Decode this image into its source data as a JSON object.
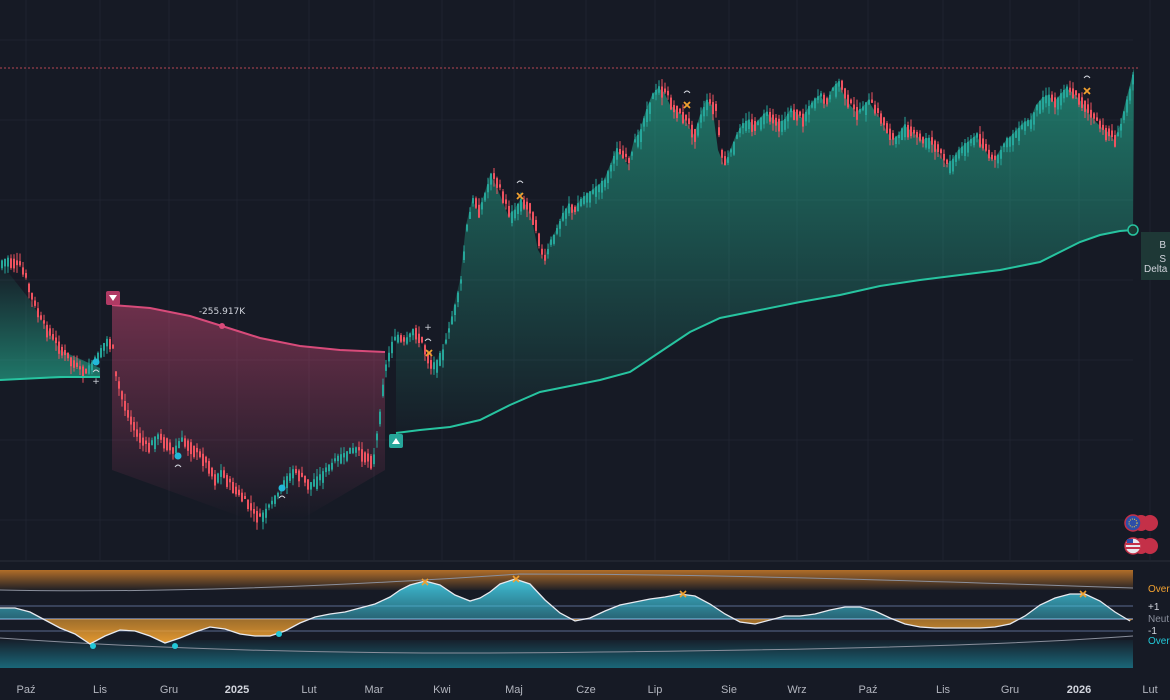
{
  "chart_data": [
    {
      "type": "candlestick",
      "panel": "price",
      "x_labels": [
        "Paź",
        "Lis",
        "Gru",
        "2025",
        "Lut",
        "Mar",
        "Kwi",
        "Maj",
        "Cze",
        "Lip",
        "Sie",
        "Wrz",
        "Paź",
        "Lis",
        "Gru",
        "2026",
        "Lut"
      ],
      "year_labels": [
        "2025",
        "2026"
      ],
      "close_path": [
        [
          0,
          262
        ],
        [
          8,
          258
        ],
        [
          16,
          262
        ],
        [
          22,
          275
        ],
        [
          30,
          300
        ],
        [
          38,
          318
        ],
        [
          46,
          330
        ],
        [
          54,
          342
        ],
        [
          62,
          352
        ],
        [
          70,
          362
        ],
        [
          78,
          368
        ],
        [
          86,
          370
        ],
        [
          94,
          358
        ],
        [
          102,
          345
        ],
        [
          108,
          338
        ],
        [
          112,
          372
        ],
        [
          118,
          392
        ],
        [
          124,
          412
        ],
        [
          132,
          428
        ],
        [
          140,
          440
        ],
        [
          148,
          445
        ],
        [
          156,
          435
        ],
        [
          164,
          440
        ],
        [
          172,
          452
        ],
        [
          180,
          438
        ],
        [
          188,
          445
        ],
        [
          196,
          452
        ],
        [
          204,
          460
        ],
        [
          212,
          478
        ],
        [
          220,
          472
        ],
        [
          228,
          482
        ],
        [
          236,
          492
        ],
        [
          244,
          500
        ],
        [
          252,
          512
        ],
        [
          260,
          516
        ],
        [
          268,
          505
        ],
        [
          276,
          495
        ],
        [
          284,
          480
        ],
        [
          292,
          470
        ],
        [
          300,
          475
        ],
        [
          308,
          485
        ],
        [
          316,
          478
        ],
        [
          324,
          470
        ],
        [
          332,
          462
        ],
        [
          340,
          455
        ],
        [
          348,
          450
        ],
        [
          356,
          448
        ],
        [
          364,
          455
        ],
        [
          372,
          462
        ],
        [
          378,
          420
        ],
        [
          384,
          370
        ],
        [
          390,
          345
        ],
        [
          396,
          335
        ],
        [
          404,
          340
        ],
        [
          412,
          330
        ],
        [
          418,
          338
        ],
        [
          424,
          355
        ],
        [
          430,
          368
        ],
        [
          436,
          360
        ],
        [
          442,
          350
        ],
        [
          448,
          330
        ],
        [
          454,
          305
        ],
        [
          460,
          280
        ],
        [
          466,
          225
        ],
        [
          472,
          200
        ],
        [
          478,
          210
        ],
        [
          484,
          195
        ],
        [
          490,
          175
        ],
        [
          496,
          185
        ],
        [
          502,
          200
        ],
        [
          508,
          215
        ],
        [
          514,
          210
        ],
        [
          520,
          200
        ],
        [
          526,
          205
        ],
        [
          532,
          220
        ],
        [
          538,
          250
        ],
        [
          544,
          260
        ],
        [
          550,
          240
        ],
        [
          556,
          230
        ],
        [
          562,
          215
        ],
        [
          568,
          205
        ],
        [
          574,
          210
        ],
        [
          580,
          200
        ],
        [
          586,
          195
        ],
        [
          592,
          190
        ],
        [
          598,
          185
        ],
        [
          604,
          180
        ],
        [
          610,
          165
        ],
        [
          616,
          150
        ],
        [
          622,
          155
        ],
        [
          628,
          165
        ],
        [
          634,
          140
        ],
        [
          640,
          130
        ],
        [
          646,
          110
        ],
        [
          652,
          95
        ],
        [
          658,
          88
        ],
        [
          664,
          92
        ],
        [
          670,
          105
        ],
        [
          676,
          110
        ],
        [
          682,
          115
        ],
        [
          688,
          125
        ],
        [
          694,
          135
        ],
        [
          700,
          115
        ],
        [
          706,
          100
        ],
        [
          712,
          105
        ],
        [
          718,
          150
        ],
        [
          724,
          165
        ],
        [
          730,
          150
        ],
        [
          736,
          135
        ],
        [
          742,
          125
        ],
        [
          748,
          120
        ],
        [
          754,
          125
        ],
        [
          760,
          118
        ],
        [
          766,
          112
        ],
        [
          772,
          118
        ],
        [
          778,
          122
        ],
        [
          784,
          120
        ],
        [
          790,
          110
        ],
        [
          796,
          112
        ],
        [
          802,
          118
        ],
        [
          808,
          108
        ],
        [
          814,
          100
        ],
        [
          820,
          95
        ],
        [
          826,
          105
        ],
        [
          832,
          88
        ],
        [
          838,
          82
        ],
        [
          844,
          95
        ],
        [
          850,
          105
        ],
        [
          856,
          112
        ],
        [
          862,
          108
        ],
        [
          868,
          100
        ],
        [
          874,
          110
        ],
        [
          880,
          118
        ],
        [
          886,
          130
        ],
        [
          892,
          140
        ],
        [
          898,
          135
        ],
        [
          904,
          125
        ],
        [
          910,
          130
        ],
        [
          916,
          135
        ],
        [
          922,
          140
        ],
        [
          928,
          138
        ],
        [
          934,
          145
        ],
        [
          940,
          155
        ],
        [
          946,
          165
        ],
        [
          952,
          160
        ],
        [
          958,
          150
        ],
        [
          964,
          145
        ],
        [
          970,
          140
        ],
        [
          976,
          135
        ],
        [
          982,
          145
        ],
        [
          988,
          155
        ],
        [
          994,
          160
        ],
        [
          1000,
          150
        ],
        [
          1006,
          140
        ],
        [
          1012,
          135
        ],
        [
          1018,
          128
        ],
        [
          1024,
          122
        ],
        [
          1030,
          120
        ],
        [
          1036,
          105
        ],
        [
          1042,
          98
        ],
        [
          1048,
          95
        ],
        [
          1054,
          102
        ],
        [
          1060,
          95
        ],
        [
          1066,
          88
        ],
        [
          1072,
          92
        ],
        [
          1078,
          98
        ],
        [
          1084,
          105
        ],
        [
          1090,
          115
        ],
        [
          1096,
          122
        ],
        [
          1102,
          128
        ],
        [
          1108,
          132
        ],
        [
          1114,
          140
        ],
        [
          1120,
          125
        ],
        [
          1126,
          100
        ],
        [
          1130,
          85
        ],
        [
          1134,
          68
        ]
      ]
    },
    {
      "type": "line",
      "panel": "price",
      "series": [
        {
          "trend": "bullish",
          "color": "#27c4a0",
          "points": [
            [
              0,
              380
            ],
            [
              20,
              379
            ],
            [
              40,
              378
            ],
            [
              60,
              377
            ],
            [
              80,
              377
            ],
            [
              100,
              377
            ]
          ]
        },
        {
          "trend": "bearish",
          "color": "#d84b7a",
          "points": [
            [
              112,
              305
            ],
            [
              150,
              308
            ],
            [
              190,
              316
            ],
            [
              222,
              326
            ],
            [
              260,
              338
            ],
            [
              300,
              346
            ],
            [
              340,
              350
            ],
            [
              385,
              352
            ]
          ]
        },
        {
          "trend": "bullish",
          "color": "#27c4a0",
          "points": [
            [
              396,
              433
            ],
            [
              420,
              430
            ],
            [
              450,
              427
            ],
            [
              480,
              420
            ],
            [
              510,
              405
            ],
            [
              540,
              392
            ],
            [
              570,
              386
            ],
            [
              600,
              380
            ],
            [
              630,
              372
            ],
            [
              660,
              352
            ],
            [
              690,
              332
            ],
            [
              720,
              318
            ],
            [
              760,
              310
            ],
            [
              800,
              302
            ],
            [
              840,
              295
            ],
            [
              880,
              286
            ],
            [
              920,
              280
            ],
            [
              960,
              275
            ],
            [
              1000,
              270
            ],
            [
              1040,
              262
            ],
            [
              1060,
              252
            ],
            [
              1080,
              242
            ],
            [
              1100,
              235
            ],
            [
              1120,
              231
            ],
            [
              1133,
              230
            ]
          ]
        }
      ],
      "annotations": [
        {
          "text": "-255.917K",
          "x": 222,
          "y": 314
        },
        {
          "text": "+",
          "x": 96,
          "y": 384
        },
        {
          "text": "+",
          "x": 428,
          "y": 330
        }
      ],
      "right_labels": [
        "B",
        "S",
        "Delta"
      ]
    },
    {
      "type": "area",
      "panel": "oscillator",
      "right_labels": [
        "Over",
        "+1",
        "Neut",
        "-1",
        "Over"
      ],
      "wave": [
        [
          0,
          608
        ],
        [
          15,
          608
        ],
        [
          30,
          612
        ],
        [
          45,
          620
        ],
        [
          60,
          628
        ],
        [
          75,
          634
        ],
        [
          90,
          644
        ],
        [
          105,
          636
        ],
        [
          120,
          630
        ],
        [
          135,
          631
        ],
        [
          150,
          636
        ],
        [
          165,
          643
        ],
        [
          180,
          638
        ],
        [
          195,
          632
        ],
        [
          210,
          627
        ],
        [
          225,
          629
        ],
        [
          240,
          634
        ],
        [
          255,
          636
        ],
        [
          270,
          636
        ],
        [
          285,
          631
        ],
        [
          300,
          623
        ],
        [
          315,
          617
        ],
        [
          330,
          614
        ],
        [
          345,
          612
        ],
        [
          360,
          608
        ],
        [
          375,
          604
        ],
        [
          390,
          597
        ],
        [
          400,
          590
        ],
        [
          410,
          585
        ],
        [
          425,
          581
        ],
        [
          440,
          585
        ],
        [
          455,
          595
        ],
        [
          470,
          601
        ],
        [
          480,
          598
        ],
        [
          490,
          592
        ],
        [
          500,
          584
        ],
        [
          515,
          579
        ],
        [
          530,
          584
        ],
        [
          545,
          600
        ],
        [
          560,
          613
        ],
        [
          575,
          621
        ],
        [
          590,
          618
        ],
        [
          605,
          611
        ],
        [
          620,
          605
        ],
        [
          635,
          602
        ],
        [
          650,
          599
        ],
        [
          665,
          597
        ],
        [
          680,
          594
        ],
        [
          695,
          596
        ],
        [
          710,
          604
        ],
        [
          725,
          614
        ],
        [
          740,
          622
        ],
        [
          755,
          624
        ],
        [
          770,
          620
        ],
        [
          785,
          616
        ],
        [
          800,
          616
        ],
        [
          815,
          614
        ],
        [
          830,
          610
        ],
        [
          845,
          607
        ],
        [
          860,
          607
        ],
        [
          875,
          611
        ],
        [
          890,
          618
        ],
        [
          905,
          624
        ],
        [
          920,
          627
        ],
        [
          935,
          628
        ],
        [
          950,
          628
        ],
        [
          965,
          628
        ],
        [
          980,
          628
        ],
        [
          995,
          627
        ],
        [
          1010,
          624
        ],
        [
          1025,
          616
        ],
        [
          1040,
          605
        ],
        [
          1055,
          598
        ],
        [
          1070,
          594
        ],
        [
          1085,
          594
        ],
        [
          1100,
          601
        ],
        [
          1115,
          612
        ],
        [
          1130,
          621
        ]
      ]
    }
  ]
}
